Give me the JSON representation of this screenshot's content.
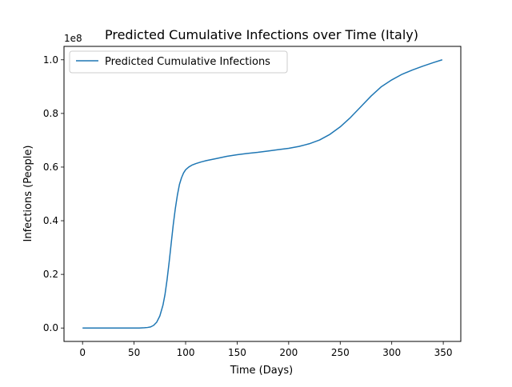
{
  "chart_data": {
    "type": "line",
    "title": "Predicted Cumulative Infections over Time (Italy)",
    "xlabel": "Time (Days)",
    "ylabel": "Infections (People)",
    "y_offset_label": "1e8",
    "y_scale_multiplier": 100000000,
    "xlim": [
      -18,
      367
    ],
    "ylim": [
      -0.05,
      1.05
    ],
    "x_ticks": [
      0,
      50,
      100,
      150,
      200,
      250,
      300,
      350
    ],
    "x_tick_labels": [
      "0",
      "50",
      "100",
      "150",
      "200",
      "250",
      "300",
      "350"
    ],
    "y_ticks": [
      0.0,
      0.2,
      0.4,
      0.6,
      0.8,
      1.0
    ],
    "y_tick_labels": [
      "0.0",
      "0.2",
      "0.4",
      "0.6",
      "0.8",
      "1.0"
    ],
    "grid": false,
    "legend": {
      "location": "upper-left",
      "entries": [
        "Predicted Cumulative Infections"
      ]
    },
    "series": [
      {
        "name": "Predicted Cumulative Infections",
        "color": "#1f77b4",
        "x": [
          0,
          10,
          20,
          30,
          40,
          50,
          55,
          60,
          63,
          66,
          69,
          72,
          75,
          78,
          80,
          82,
          84,
          86,
          88,
          90,
          92,
          94,
          96,
          98,
          100,
          103,
          106,
          110,
          115,
          120,
          130,
          140,
          150,
          160,
          170,
          180,
          190,
          200,
          210,
          220,
          230,
          240,
          250,
          260,
          270,
          280,
          290,
          300,
          310,
          320,
          330,
          340,
          349
        ],
        "y": [
          0.0,
          0.0,
          0.0,
          0.0,
          0.0,
          0.0,
          0.0,
          0.001,
          0.002,
          0.004,
          0.01,
          0.022,
          0.045,
          0.085,
          0.125,
          0.18,
          0.245,
          0.315,
          0.385,
          0.445,
          0.495,
          0.535,
          0.56,
          0.578,
          0.59,
          0.6,
          0.607,
          0.613,
          0.619,
          0.624,
          0.632,
          0.64,
          0.646,
          0.651,
          0.655,
          0.66,
          0.665,
          0.67,
          0.677,
          0.687,
          0.701,
          0.722,
          0.75,
          0.785,
          0.825,
          0.865,
          0.9,
          0.925,
          0.946,
          0.962,
          0.976,
          0.989,
          1.0
        ]
      }
    ]
  }
}
